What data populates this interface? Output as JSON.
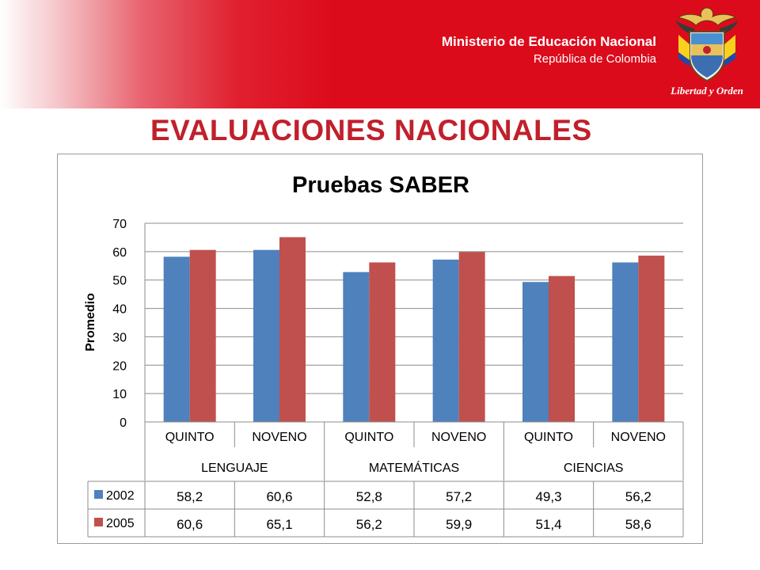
{
  "header": {
    "ministry": "Ministerio de Educación Nacional",
    "country": "República de Colombia",
    "motto": "Libertad y Orden"
  },
  "slide": {
    "title": "EVALUACIONES NACIONALES"
  },
  "colors": {
    "banner": "#dc0b1c",
    "title": "#c0202c",
    "series2002": "#4f81bd",
    "series2005": "#c0504d"
  },
  "chart_data": {
    "type": "bar",
    "title": "Pruebas SABER",
    "ylabel": "Promedio",
    "xlabel": "",
    "ylim": [
      0,
      70
    ],
    "yticks": [
      0,
      10,
      20,
      30,
      40,
      50,
      60,
      70
    ],
    "grid": true,
    "categories": [
      "QUINTO",
      "NOVENO",
      "QUINTO",
      "NOVENO",
      "QUINTO",
      "NOVENO"
    ],
    "groups": [
      {
        "label": "LENGUAJE",
        "span": 2
      },
      {
        "label": "MATEMÁTICAS",
        "span": 2
      },
      {
        "label": "CIENCIAS",
        "span": 2
      }
    ],
    "series": [
      {
        "name": "2002",
        "values": [
          58.2,
          60.6,
          52.8,
          57.2,
          49.3,
          56.2
        ],
        "labels": [
          "58,2",
          "60,6",
          "52,8",
          "57,2",
          "49,3",
          "56,2"
        ]
      },
      {
        "name": "2005",
        "values": [
          60.6,
          65.1,
          56.2,
          59.9,
          51.4,
          58.6
        ],
        "labels": [
          "60,6",
          "65,1",
          "56,2",
          "59,9",
          "51,4",
          "58,6"
        ]
      }
    ],
    "legend": "data-table"
  }
}
